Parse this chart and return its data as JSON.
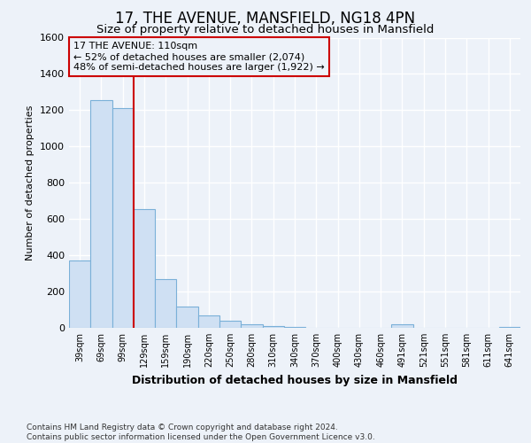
{
  "title1": "17, THE AVENUE, MANSFIELD, NG18 4PN",
  "title2": "Size of property relative to detached houses in Mansfield",
  "xlabel": "Distribution of detached houses by size in Mansfield",
  "ylabel": "Number of detached properties",
  "footnote": "Contains HM Land Registry data © Crown copyright and database right 2024.\nContains public sector information licensed under the Open Government Licence v3.0.",
  "categories": [
    "39sqm",
    "69sqm",
    "99sqm",
    "129sqm",
    "159sqm",
    "190sqm",
    "220sqm",
    "250sqm",
    "280sqm",
    "310sqm",
    "340sqm",
    "370sqm",
    "400sqm",
    "430sqm",
    "460sqm",
    "491sqm",
    "521sqm",
    "551sqm",
    "581sqm",
    "611sqm",
    "641sqm"
  ],
  "values": [
    370,
    1255,
    1210,
    655,
    270,
    115,
    70,
    38,
    18,
    8,
    4,
    2,
    2,
    0,
    0,
    18,
    0,
    0,
    0,
    0,
    3
  ],
  "bar_color": "#cfe0f3",
  "bar_edge_color": "#7ab0d8",
  "annotation_box_color": "#cc0000",
  "property_line_x": 2.5,
  "annotation_line1": "17 THE AVENUE: 110sqm",
  "annotation_line2": "← 52% of detached houses are smaller (2,074)",
  "annotation_line3": "48% of semi-detached houses are larger (1,922) →",
  "ylim": [
    0,
    1600
  ],
  "yticks": [
    0,
    200,
    400,
    600,
    800,
    1000,
    1200,
    1400,
    1600
  ],
  "background_color": "#edf2f9",
  "grid_color": "#ffffff",
  "title1_fontsize": 12,
  "title2_fontsize": 9.5,
  "xlabel_fontsize": 9,
  "ylabel_fontsize": 8,
  "tick_fontsize": 8,
  "footnote_fontsize": 6.5
}
